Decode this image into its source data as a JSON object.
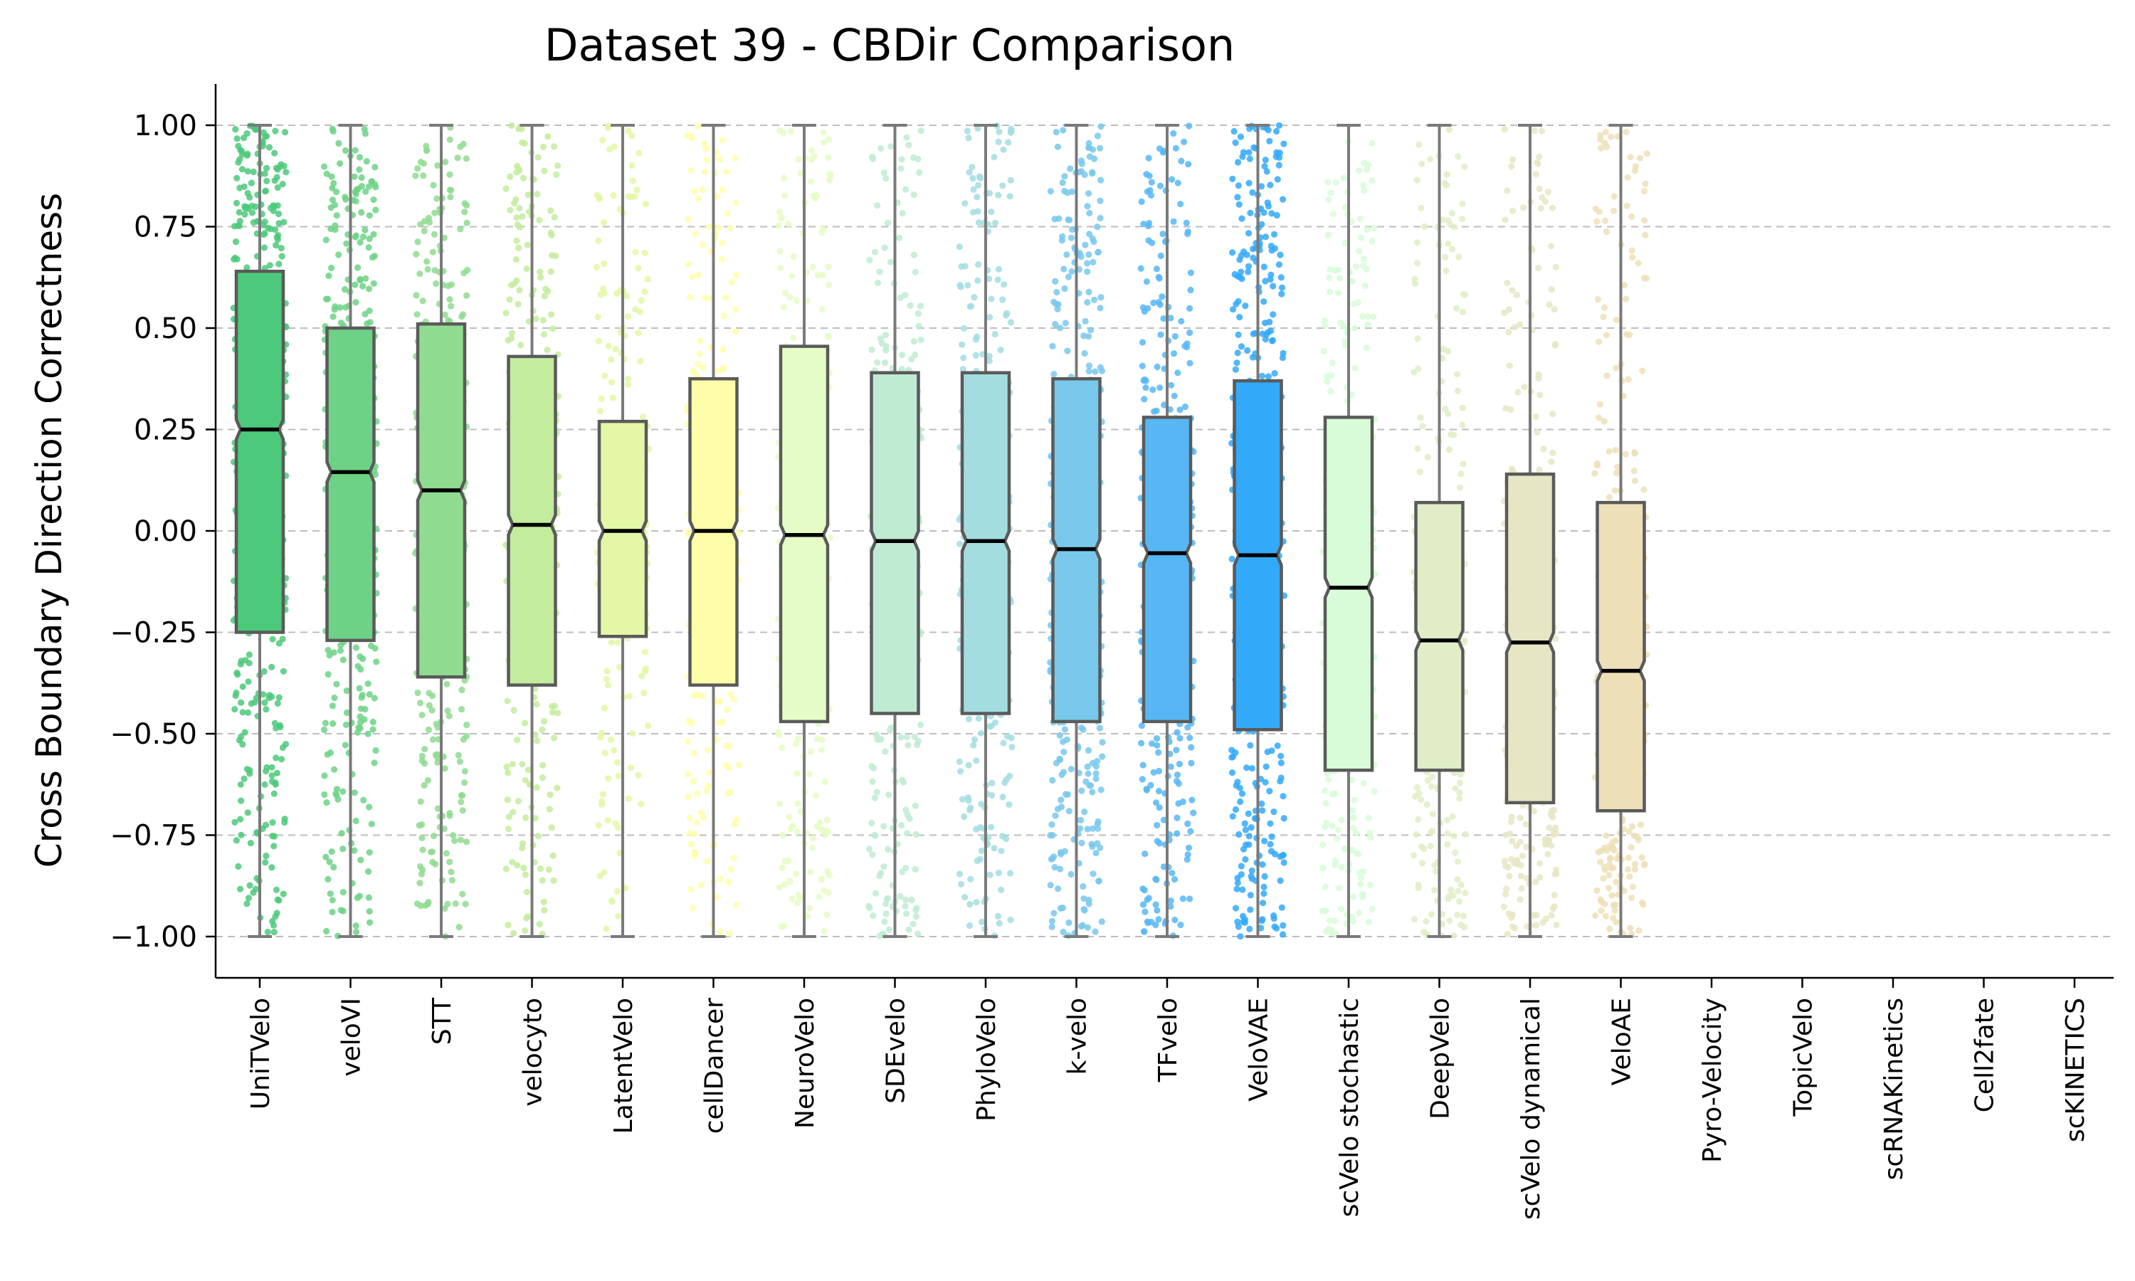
{
  "chart_data": {
    "type": "box",
    "title": "Dataset 39 - CBDir Comparison",
    "xlabel": "",
    "ylabel": "Cross Boundary Direction Correctness",
    "ylim": [
      -1.1,
      1.1
    ],
    "yticks": [
      1.0,
      0.75,
      0.5,
      0.25,
      0.0,
      -0.25,
      -0.5,
      -0.75,
      -1.0
    ],
    "ytick_labels": [
      "1.00",
      "0.75",
      "0.50",
      "0.25",
      "0.00",
      "−0.25",
      "−0.50",
      "−0.75",
      "−1.00"
    ],
    "grid": "y-dashed",
    "categories": [
      "UniTVelo",
      "veloVI",
      "STT",
      "velocyto",
      "LatentVelo",
      "cellDancer",
      "NeuroVelo",
      "SDEvelo",
      "PhyloVelo",
      "k-velo",
      "TFvelo",
      "VeloVAE",
      "scVelo stochastic",
      "DeepVelo",
      "scVelo dynamical",
      "VeloAE",
      "Pyro-Velocity",
      "TopicVelo",
      "scRNAKinetics",
      "Cell2fate",
      "scKINETICS"
    ],
    "series": [
      {
        "name": "UniTVelo",
        "whisker_low": -1.0,
        "q1": -0.25,
        "median": 0.25,
        "q3": 0.64,
        "whisker_high": 1.0,
        "color": "#4cc97a",
        "density": 1.0
      },
      {
        "name": "veloVI",
        "whisker_low": -1.0,
        "q1": -0.27,
        "median": 0.145,
        "q3": 0.5,
        "whisker_high": 1.0,
        "color": "#6dd286",
        "density": 0.85
      },
      {
        "name": "STT",
        "whisker_low": -1.0,
        "q1": -0.36,
        "median": 0.1,
        "q3": 0.51,
        "whisker_high": 1.0,
        "color": "#8fdb8f",
        "density": 0.75
      },
      {
        "name": "velocyto",
        "whisker_low": -1.0,
        "q1": -0.38,
        "median": 0.015,
        "q3": 0.43,
        "whisker_high": 1.0,
        "color": "#c3ec9d",
        "density": 0.6
      },
      {
        "name": "LatentVelo",
        "whisker_low": -1.0,
        "q1": -0.26,
        "median": 0.0,
        "q3": 0.27,
        "whisker_high": 1.0,
        "color": "#e3f7a6",
        "density": 0.55
      },
      {
        "name": "cellDancer",
        "whisker_low": -1.0,
        "q1": -0.38,
        "median": 0.0,
        "q3": 0.375,
        "whisker_high": 1.0,
        "color": "#fefeaa",
        "density": 0.55
      },
      {
        "name": "NeuroVelo",
        "whisker_low": -1.0,
        "q1": -0.47,
        "median": -0.01,
        "q3": 0.455,
        "whisker_high": 1.0,
        "color": "#e6fcc6",
        "density": 0.55
      },
      {
        "name": "SDEvelo",
        "whisker_low": -1.0,
        "q1": -0.45,
        "median": -0.025,
        "q3": 0.39,
        "whisker_high": 1.0,
        "color": "#bfebd3",
        "density": 0.6
      },
      {
        "name": "PhyloVelo",
        "whisker_low": -1.0,
        "q1": -0.45,
        "median": -0.025,
        "q3": 0.39,
        "whisker_high": 1.0,
        "color": "#a3dde0",
        "density": 0.7
      },
      {
        "name": "k-velo",
        "whisker_low": -1.0,
        "q1": -0.47,
        "median": -0.045,
        "q3": 0.375,
        "whisker_high": 1.0,
        "color": "#78c8ec",
        "density": 0.85
      },
      {
        "name": "TFvelo",
        "whisker_low": -1.0,
        "q1": -0.47,
        "median": -0.055,
        "q3": 0.28,
        "whisker_high": 1.0,
        "color": "#57b7f5",
        "density": 0.85
      },
      {
        "name": "VeloVAE",
        "whisker_low": -1.0,
        "q1": -0.49,
        "median": -0.06,
        "q3": 0.37,
        "whisker_high": 1.0,
        "color": "#33a9f9",
        "density": 1.0
      },
      {
        "name": "scVelo stochastic",
        "whisker_low": -1.0,
        "q1": -0.59,
        "median": -0.14,
        "q3": 0.28,
        "whisker_high": 1.0,
        "color": "#d8fcd8",
        "density": 0.6
      },
      {
        "name": "DeepVelo",
        "whisker_low": -1.0,
        "q1": -0.59,
        "median": -0.27,
        "q3": 0.07,
        "whisker_high": 1.0,
        "color": "#e0edc6",
        "density": 0.6
      },
      {
        "name": "scVelo dynamical",
        "whisker_low": -1.0,
        "q1": -0.67,
        "median": -0.275,
        "q3": 0.14,
        "whisker_high": 1.0,
        "color": "#e6e6c4",
        "density": 0.65
      },
      {
        "name": "VeloAE",
        "whisker_low": -1.0,
        "q1": -0.69,
        "median": -0.345,
        "q3": 0.07,
        "whisker_high": 1.0,
        "color": "#ede0b8",
        "density": 0.6
      },
      {
        "name": "Pyro-Velocity",
        "empty": true
      },
      {
        "name": "TopicVelo",
        "empty": true
      },
      {
        "name": "scRNAKinetics",
        "empty": true
      },
      {
        "name": "Cell2fate",
        "empty": true
      },
      {
        "name": "scKINETICS",
        "empty": true
      }
    ]
  }
}
